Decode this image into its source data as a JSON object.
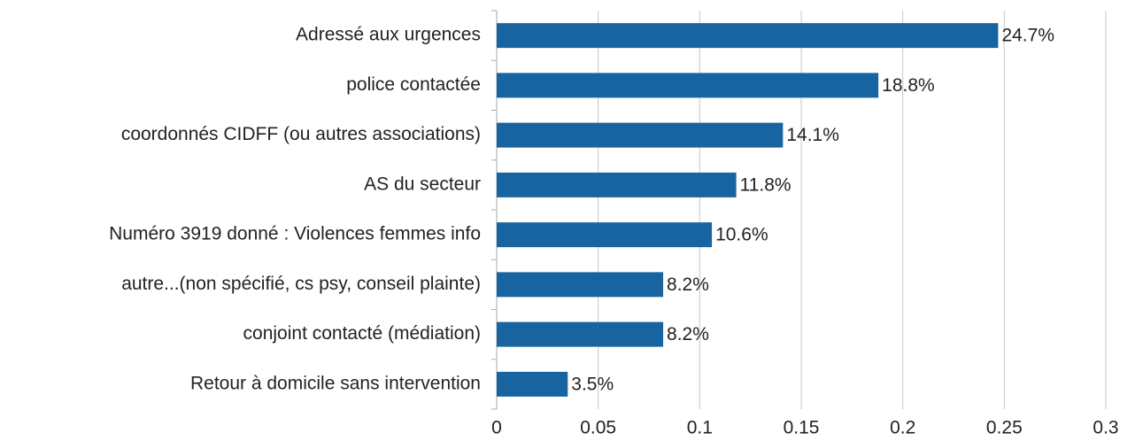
{
  "chart_data": {
    "type": "hbar",
    "categories": [
      "Adressé aux urgences",
      "police contactée",
      "coordonnés CIDFF (ou autres associations)",
      "AS du secteur ",
      "Numéro 3919 donné : Violences femmes info",
      "autre...(non spécifié, cs psy, conseil plainte)",
      "conjoint contacté (médiation)",
      "Retour à domicile sans intervention"
    ],
    "values": [
      0.247,
      0.188,
      0.141,
      0.118,
      0.106,
      0.082,
      0.082,
      0.035
    ],
    "value_labels": [
      "24.7%",
      "18.8%",
      "14.1%",
      "11.8%",
      "10.6%",
      "8.2%",
      "8.2%",
      "3.5%"
    ],
    "color": "#1764a0",
    "xlim": [
      0,
      0.3
    ],
    "xticks": [
      0,
      0.05,
      0.1,
      0.15,
      0.2,
      0.25,
      0.3
    ],
    "grid": true
  }
}
